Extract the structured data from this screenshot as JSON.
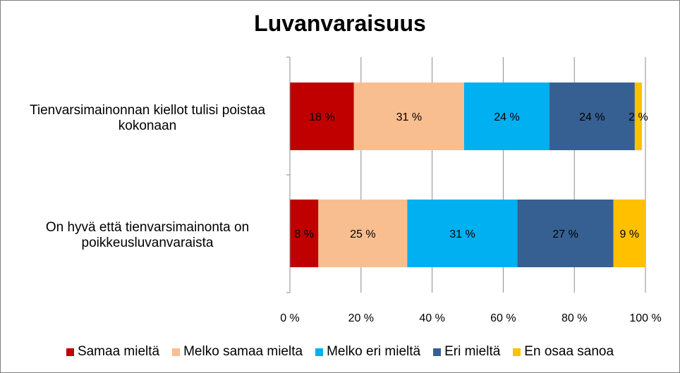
{
  "chart_data": {
    "type": "bar",
    "orientation": "horizontal",
    "stacked": true,
    "title": "Luvanvaraisuus",
    "categories": [
      [
        "Tienvarsimainonnan kiellot tulisi poistaa",
        "kokonaan"
      ],
      [
        "On hyvä että tienvarsimainonta on",
        "poikkeusluvanvaraista"
      ]
    ],
    "series": [
      {
        "name": "Samaa mieltä",
        "color": "#c00000",
        "values": [
          18,
          8
        ],
        "labels": [
          "18 %",
          "8 %"
        ]
      },
      {
        "name": "Melko samaa mielta",
        "color": "#f9be8f",
        "values": [
          31,
          25
        ],
        "labels": [
          "31 %",
          "25 %"
        ]
      },
      {
        "name": "Melko eri mieltä",
        "color": "#00b0f0",
        "values": [
          24,
          31
        ],
        "labels": [
          "24 %",
          "31 %"
        ]
      },
      {
        "name": "Eri mieltä",
        "color": "#366092",
        "values": [
          24,
          27
        ],
        "labels": [
          "24 %",
          "27 %"
        ]
      },
      {
        "name": "En osaa sanoa",
        "color": "#ffc000",
        "values": [
          2,
          9
        ],
        "labels": [
          "2 %",
          "9 %"
        ]
      }
    ],
    "xlim": [
      0,
      100
    ],
    "x_ticks": [
      0,
      20,
      40,
      60,
      80,
      100
    ],
    "x_tick_labels": [
      "0 %",
      "20 %",
      "40 %",
      "60 %",
      "80 %",
      "100 %"
    ],
    "grid": true,
    "legend_position": "bottom"
  }
}
